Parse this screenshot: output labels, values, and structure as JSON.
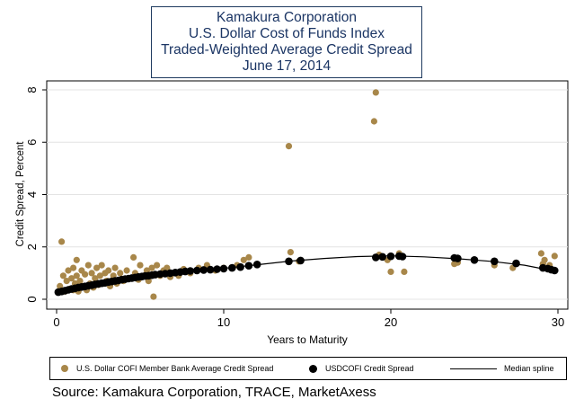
{
  "chart_data": {
    "type": "scatter",
    "title_lines": [
      "Kamakura Corporation",
      "U.S. Dollar Cost of Funds Index",
      "Traded-Weighted Average Credit Spread",
      "June 17, 2014"
    ],
    "xlabel": "Years to Maturity",
    "ylabel": "Credit Spread, Percent",
    "xlim": [
      0,
      30
    ],
    "ylim": [
      0,
      8
    ],
    "x_ticks": [
      0,
      10,
      20,
      30
    ],
    "y_ticks": [
      0,
      2,
      4,
      6,
      8
    ],
    "grid": "horizontal",
    "legend_position": "bottom",
    "series": [
      {
        "name": "U.S. Dollar COFI Member Bank Average Credit Spread",
        "kind": "points",
        "color": "#a8874a",
        "points": [
          [
            0.2,
            0.5
          ],
          [
            0.3,
            2.2
          ],
          [
            0.4,
            0.9
          ],
          [
            0.5,
            0.3
          ],
          [
            0.6,
            0.7
          ],
          [
            0.7,
            1.1
          ],
          [
            0.8,
            0.4
          ],
          [
            0.9,
            0.8
          ],
          [
            1.0,
            1.2
          ],
          [
            1.0,
            0.35
          ],
          [
            1.1,
            0.6
          ],
          [
            1.2,
            1.5
          ],
          [
            1.2,
            0.9
          ],
          [
            1.3,
            0.3
          ],
          [
            1.4,
            0.7
          ],
          [
            1.5,
            1.1
          ],
          [
            1.6,
            0.5
          ],
          [
            1.7,
            0.95
          ],
          [
            1.8,
            0.35
          ],
          [
            1.9,
            1.3
          ],
          [
            2.0,
            0.6
          ],
          [
            2.1,
            1.0
          ],
          [
            2.2,
            0.45
          ],
          [
            2.3,
            0.8
          ],
          [
            2.4,
            1.2
          ],
          [
            2.5,
            0.55
          ],
          [
            2.6,
            0.9
          ],
          [
            2.7,
            1.3
          ],
          [
            2.8,
            0.6
          ],
          [
            2.9,
            1.0
          ],
          [
            3.0,
            0.7
          ],
          [
            3.1,
            1.1
          ],
          [
            3.2,
            0.5
          ],
          [
            3.4,
            0.9
          ],
          [
            3.5,
            1.2
          ],
          [
            3.6,
            0.6
          ],
          [
            3.8,
            1.0
          ],
          [
            4.0,
            0.7
          ],
          [
            4.2,
            1.1
          ],
          [
            4.4,
            0.8
          ],
          [
            4.6,
            1.6
          ],
          [
            4.7,
            1.0
          ],
          [
            4.9,
            0.75
          ],
          [
            5.0,
            1.3
          ],
          [
            5.2,
            0.9
          ],
          [
            5.4,
            1.1
          ],
          [
            5.5,
            0.7
          ],
          [
            5.7,
            1.2
          ],
          [
            5.8,
            0.1
          ],
          [
            6.0,
            1.3
          ],
          [
            6.2,
            0.9
          ],
          [
            6.4,
            1.1
          ],
          [
            6.6,
            1.2
          ],
          [
            6.8,
            0.85
          ],
          [
            7.0,
            1.0
          ],
          [
            7.3,
            0.9
          ],
          [
            7.6,
            1.15
          ],
          [
            8.0,
            1.0
          ],
          [
            8.5,
            1.2
          ],
          [
            9.0,
            1.3
          ],
          [
            9.5,
            1.1
          ],
          [
            10.0,
            1.2
          ],
          [
            10.8,
            1.3
          ],
          [
            11.2,
            1.5
          ],
          [
            11.5,
            1.6
          ],
          [
            13.9,
            5.85
          ],
          [
            14.0,
            1.8
          ],
          [
            14.5,
            1.45
          ],
          [
            19.0,
            6.8
          ],
          [
            19.1,
            7.9
          ],
          [
            19.3,
            1.7
          ],
          [
            19.8,
            1.5
          ],
          [
            20.0,
            1.05
          ],
          [
            20.5,
            1.75
          ],
          [
            20.8,
            1.05
          ],
          [
            23.8,
            1.35
          ],
          [
            24.0,
            1.4
          ],
          [
            26.2,
            1.3
          ],
          [
            27.3,
            1.2
          ],
          [
            29.0,
            1.75
          ],
          [
            29.1,
            1.35
          ],
          [
            29.8,
            1.65
          ],
          [
            29.5,
            1.3
          ],
          [
            29.2,
            1.5
          ]
        ]
      },
      {
        "name": "USDCOFI Credit Spread",
        "kind": "points",
        "color": "#000000",
        "points": [
          [
            0.1,
            0.27
          ],
          [
            0.3,
            0.3
          ],
          [
            0.5,
            0.33
          ],
          [
            0.7,
            0.36
          ],
          [
            0.9,
            0.39
          ],
          [
            1.1,
            0.42
          ],
          [
            1.3,
            0.45
          ],
          [
            1.5,
            0.47
          ],
          [
            1.7,
            0.49
          ],
          [
            1.9,
            0.52
          ],
          [
            2.1,
            0.54
          ],
          [
            2.3,
            0.57
          ],
          [
            2.5,
            0.59
          ],
          [
            2.7,
            0.61
          ],
          [
            2.9,
            0.63
          ],
          [
            3.1,
            0.66
          ],
          [
            3.3,
            0.68
          ],
          [
            3.5,
            0.7
          ],
          [
            3.7,
            0.72
          ],
          [
            3.9,
            0.75
          ],
          [
            4.1,
            0.77
          ],
          [
            4.3,
            0.79
          ],
          [
            4.5,
            0.81
          ],
          [
            4.7,
            0.83
          ],
          [
            4.9,
            0.85
          ],
          [
            5.1,
            0.87
          ],
          [
            5.3,
            0.89
          ],
          [
            5.5,
            0.9
          ],
          [
            5.7,
            0.92
          ],
          [
            5.9,
            0.94
          ],
          [
            6.2,
            0.96
          ],
          [
            6.5,
            0.98
          ],
          [
            6.8,
            1.0
          ],
          [
            7.1,
            1.02
          ],
          [
            7.4,
            1.04
          ],
          [
            7.7,
            1.06
          ],
          [
            8.0,
            1.08
          ],
          [
            8.4,
            1.1
          ],
          [
            8.8,
            1.12
          ],
          [
            9.2,
            1.13
          ],
          [
            9.6,
            1.15
          ],
          [
            10.0,
            1.17
          ],
          [
            10.5,
            1.2
          ],
          [
            11.0,
            1.23
          ],
          [
            11.5,
            1.28
          ],
          [
            12.0,
            1.33
          ],
          [
            13.9,
            1.45
          ],
          [
            14.6,
            1.48
          ],
          [
            19.1,
            1.6
          ],
          [
            19.5,
            1.62
          ],
          [
            20.0,
            1.64
          ],
          [
            20.5,
            1.65
          ],
          [
            20.7,
            1.63
          ],
          [
            23.8,
            1.58
          ],
          [
            24.0,
            1.56
          ],
          [
            25.0,
            1.5
          ],
          [
            26.2,
            1.45
          ],
          [
            27.5,
            1.37
          ],
          [
            29.1,
            1.2
          ],
          [
            29.4,
            1.17
          ],
          [
            29.6,
            1.13
          ],
          [
            29.8,
            1.1
          ]
        ]
      },
      {
        "name": "Median spline",
        "kind": "line",
        "color": "#000000",
        "points": [
          [
            0,
            0.25
          ],
          [
            2,
            0.52
          ],
          [
            4,
            0.76
          ],
          [
            6,
            0.95
          ],
          [
            8,
            1.08
          ],
          [
            10,
            1.18
          ],
          [
            12,
            1.32
          ],
          [
            14,
            1.46
          ],
          [
            16,
            1.56
          ],
          [
            18,
            1.63
          ],
          [
            20,
            1.66
          ],
          [
            22,
            1.62
          ],
          [
            24,
            1.55
          ],
          [
            26,
            1.45
          ],
          [
            28,
            1.3
          ],
          [
            30,
            1.05
          ]
        ]
      }
    ],
    "source": "Source: Kamakura Corporation, TRACE, MarketAxess"
  }
}
